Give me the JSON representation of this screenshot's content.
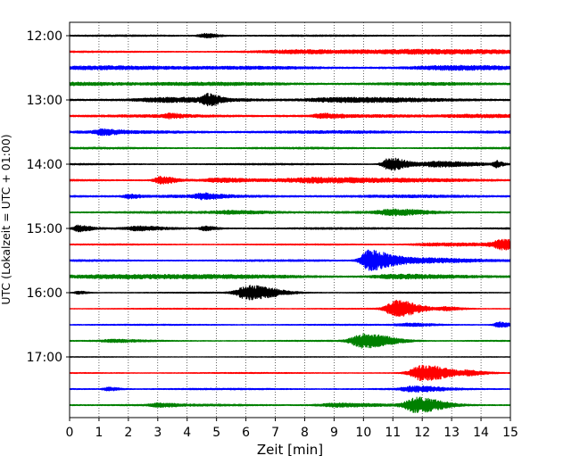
{
  "chart_data": {
    "type": "line",
    "title": "",
    "xlabel": "Zeit  [min]",
    "ylabel": "UTC (Lokalzeit = UTC + 01:00)",
    "xlim": [
      0,
      15
    ],
    "x_ticks": [
      "0",
      "1",
      "2",
      "3",
      "4",
      "5",
      "6",
      "7",
      "8",
      "9",
      "10",
      "11",
      "12",
      "13",
      "14",
      "15"
    ],
    "y_ticks": [
      {
        "label": "12:00",
        "trace": 0
      },
      {
        "label": "13:00",
        "trace": 4
      },
      {
        "label": "14:00",
        "trace": 8
      },
      {
        "label": "15:00",
        "trace": 12
      },
      {
        "label": "16:00",
        "trace": 16
      },
      {
        "label": "17:00",
        "trace": 20
      }
    ],
    "grid": {
      "vertical": true,
      "style": "dotted"
    },
    "colors": [
      "#000000",
      "#ff0000",
      "#0000ff",
      "#008000"
    ],
    "traces": [
      {
        "start": "12:00",
        "color": "#000000",
        "noise": 0.3,
        "events": [
          [
            4.6,
            0.7,
            0.25
          ]
        ]
      },
      {
        "start": "12:15",
        "color": "#ff0000",
        "noise": 0.3,
        "events": [
          [
            8.0,
            0.5,
            1.8
          ],
          [
            12.0,
            0.6,
            2.0
          ]
        ]
      },
      {
        "start": "12:30",
        "color": "#0000ff",
        "noise": 0.55,
        "events": [
          [
            1.5,
            0.4,
            1.5
          ],
          [
            12.8,
            0.45,
            1.2
          ]
        ]
      },
      {
        "start": "12:45",
        "color": "#008000",
        "noise": 0.55,
        "events": [
          [
            0.5,
            0.3,
            2.0
          ]
        ]
      },
      {
        "start": "13:00",
        "color": "#000000",
        "noise": 0.55,
        "events": [
          [
            4.7,
            1.7,
            0.2
          ],
          [
            9.0,
            0.6,
            1.2
          ],
          [
            3.2,
            0.5,
            1.0
          ]
        ]
      },
      {
        "start": "13:15",
        "color": "#ff0000",
        "noise": 0.55,
        "events": [
          [
            3.4,
            0.6,
            0.2
          ],
          [
            8.6,
            0.6,
            0.3
          ],
          [
            13.5,
            0.4,
            1.0
          ]
        ]
      },
      {
        "start": "13:30",
        "color": "#0000ff",
        "noise": 0.55,
        "events": [
          [
            1.1,
            0.8,
            0.3
          ]
        ]
      },
      {
        "start": "13:45",
        "color": "#008000",
        "noise": 0.35,
        "events": []
      },
      {
        "start": "14:00",
        "color": "#000000",
        "noise": 0.3,
        "events": [
          [
            10.9,
            2.3,
            0.3
          ],
          [
            12.5,
            0.9,
            0.6
          ],
          [
            14.5,
            1.1,
            0.1
          ]
        ]
      },
      {
        "start": "14:15",
        "color": "#ff0000",
        "noise": 0.4,
        "events": [
          [
            3.1,
            1.3,
            0.25
          ],
          [
            8.5,
            0.9,
            1.5
          ],
          [
            5.0,
            0.5,
            0.5
          ]
        ]
      },
      {
        "start": "14:30",
        "color": "#0000ff",
        "noise": 0.55,
        "events": [
          [
            4.5,
            0.8,
            0.3
          ],
          [
            2.0,
            0.6,
            0.2
          ]
        ]
      },
      {
        "start": "14:45",
        "color": "#008000",
        "noise": 0.4,
        "events": [
          [
            11.0,
            0.9,
            0.6
          ],
          [
            5.5,
            0.5,
            0.8
          ]
        ]
      },
      {
        "start": "15:00",
        "color": "#000000",
        "noise": 0.35,
        "events": [
          [
            0.3,
            1.1,
            0.2
          ],
          [
            2.3,
            0.6,
            0.4
          ],
          [
            4.6,
            0.7,
            0.2
          ]
        ]
      },
      {
        "start": "15:15",
        "color": "#ff0000",
        "noise": 0.25,
        "events": [
          [
            14.8,
            1.8,
            0.5
          ],
          [
            12.5,
            0.5,
            1.0
          ]
        ]
      },
      {
        "start": "15:30",
        "color": "#0000ff",
        "noise": 0.35,
        "events": [
          [
            10.2,
            3.8,
            0.35
          ],
          [
            11.5,
            0.9,
            0.9
          ]
        ]
      },
      {
        "start": "15:45",
        "color": "#008000",
        "noise": 0.45,
        "events": [
          [
            2.0,
            0.6,
            2.0
          ],
          [
            11.0,
            0.6,
            0.8
          ]
        ]
      },
      {
        "start": "16:00",
        "color": "#000000",
        "noise": 0.22,
        "events": [
          [
            6.1,
            2.6,
            0.5
          ],
          [
            0.3,
            0.5,
            0.15
          ]
        ]
      },
      {
        "start": "16:15",
        "color": "#ff0000",
        "noise": 0.22,
        "events": [
          [
            11.1,
            3.0,
            0.4
          ],
          [
            12.8,
            0.6,
            0.3
          ]
        ]
      },
      {
        "start": "16:30",
        "color": "#0000ff",
        "noise": 0.25,
        "events": [
          [
            14.6,
            0.9,
            0.2
          ],
          [
            11.5,
            0.5,
            0.5
          ]
        ]
      },
      {
        "start": "16:45",
        "color": "#008000",
        "noise": 0.25,
        "events": [
          [
            10.0,
            2.6,
            0.5
          ],
          [
            1.5,
            0.4,
            0.5
          ]
        ]
      },
      {
        "start": "17:00",
        "color": "#000000",
        "noise": 0.12,
        "events": []
      },
      {
        "start": "17:15",
        "color": "#ff0000",
        "noise": 0.22,
        "events": [
          [
            12.0,
            2.8,
            0.5
          ],
          [
            13.6,
            0.6,
            0.3
          ]
        ]
      },
      {
        "start": "17:30",
        "color": "#0000ff",
        "noise": 0.3,
        "events": [
          [
            1.3,
            0.6,
            0.2
          ],
          [
            11.7,
            0.9,
            0.5
          ]
        ]
      },
      {
        "start": "17:45",
        "color": "#008000",
        "noise": 0.4,
        "events": [
          [
            11.8,
            2.6,
            0.45
          ],
          [
            3.0,
            0.5,
            0.3
          ],
          [
            9.0,
            0.5,
            0.6
          ]
        ]
      }
    ]
  }
}
